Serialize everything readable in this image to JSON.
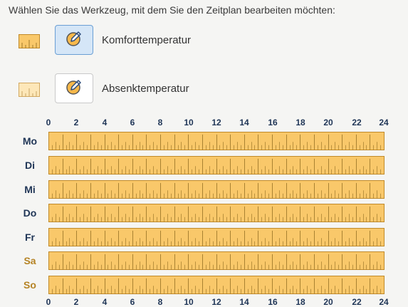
{
  "instruction": "Wählen Sie das Werkzeug, mit dem Sie den Zeitplan bearbeiten möchten:",
  "tools": [
    {
      "label": "Komforttemperatur",
      "selected": true,
      "swatch_color": "#f9c86a",
      "icon": "pencil-icon"
    },
    {
      "label": "Absenktemperatur",
      "selected": false,
      "swatch_color": "#fde7b8",
      "icon": "pencil-icon"
    }
  ],
  "hour_labels": [
    "0",
    "2",
    "4",
    "6",
    "8",
    "10",
    "12",
    "14",
    "16",
    "18",
    "20",
    "22",
    "24"
  ],
  "days": [
    {
      "label": "Mo",
      "weekend": false,
      "mode": "Komforttemperatur"
    },
    {
      "label": "Di",
      "weekend": false,
      "mode": "Komforttemperatur"
    },
    {
      "label": "Mi",
      "weekend": false,
      "mode": "Komforttemperatur"
    },
    {
      "label": "Do",
      "weekend": false,
      "mode": "Komforttemperatur"
    },
    {
      "label": "Fr",
      "weekend": false,
      "mode": "Komforttemperatur"
    },
    {
      "label": "Sa",
      "weekend": true,
      "mode": "Komforttemperatur"
    },
    {
      "label": "So",
      "weekend": true,
      "mode": "Komforttemperatur"
    }
  ],
  "colors": {
    "comfort": "#f9c86a",
    "reduced": "#fde7b8",
    "tick": "#a07a2c",
    "selected_button": "#d5e6f7",
    "day_label": "#1f3556",
    "weekend_label": "#b58324"
  }
}
